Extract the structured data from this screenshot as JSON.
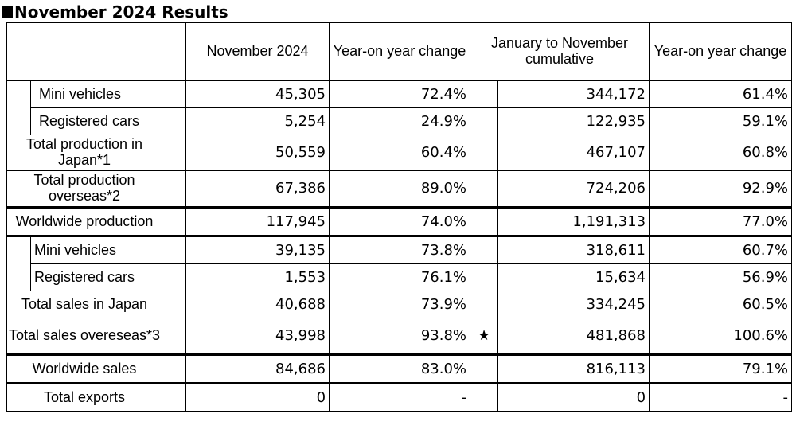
{
  "title": "November 2024 Results",
  "headers": {
    "month": "November 2024",
    "yoy1": "Year-on year change",
    "cumulative": "January to November cumulative",
    "yoy2": "Year-on year change"
  },
  "rows": {
    "prod_mini": {
      "label": "Mini vehicles",
      "month": "45,305",
      "yoy1": "72.4%",
      "mark": "",
      "cum": "344,172",
      "yoy2": "61.4%"
    },
    "prod_reg": {
      "label": "Registered cars",
      "month": "5,254",
      "yoy1": "24.9%",
      "mark": "",
      "cum": "122,935",
      "yoy2": "59.1%"
    },
    "prod_japan": {
      "label": "Total production in Japan*1",
      "month": "50,559",
      "yoy1": "60.4%",
      "mark": "",
      "cum": "467,107",
      "yoy2": "60.8%"
    },
    "prod_overseas": {
      "label": "Total production overseas*2",
      "month": "67,386",
      "yoy1": "89.0%",
      "mark": "",
      "cum": "724,206",
      "yoy2": "92.9%"
    },
    "prod_world": {
      "label": "Worldwide production",
      "month": "117,945",
      "yoy1": "74.0%",
      "mark": "",
      "cum": "1,191,313",
      "yoy2": "77.0%"
    },
    "sales_mini": {
      "label": "Mini vehicles",
      "month": "39,135",
      "yoy1": "73.8%",
      "mark": "",
      "cum": "318,611",
      "yoy2": "60.7%"
    },
    "sales_reg": {
      "label": "Registered cars",
      "month": "1,553",
      "yoy1": "76.1%",
      "mark": "",
      "cum": "15,634",
      "yoy2": "56.9%"
    },
    "sales_japan": {
      "label": "Total sales in Japan",
      "month": "40,688",
      "yoy1": "73.9%",
      "mark": "",
      "cum": "334,245",
      "yoy2": "60.5%"
    },
    "sales_overseas": {
      "label": "Total sales overeseas*3",
      "month": "43,998",
      "yoy1": "93.8%",
      "mark": "★",
      "cum": "481,868",
      "yoy2": "100.6%"
    },
    "sales_world": {
      "label": "Worldwide sales",
      "month": "84,686",
      "yoy1": "83.0%",
      "mark": "",
      "cum": "816,113",
      "yoy2": "79.1%"
    },
    "exports": {
      "label": "Total exports",
      "month": "0",
      "yoy1": "-",
      "mark": "",
      "cum": "0",
      "yoy2": "-"
    }
  }
}
